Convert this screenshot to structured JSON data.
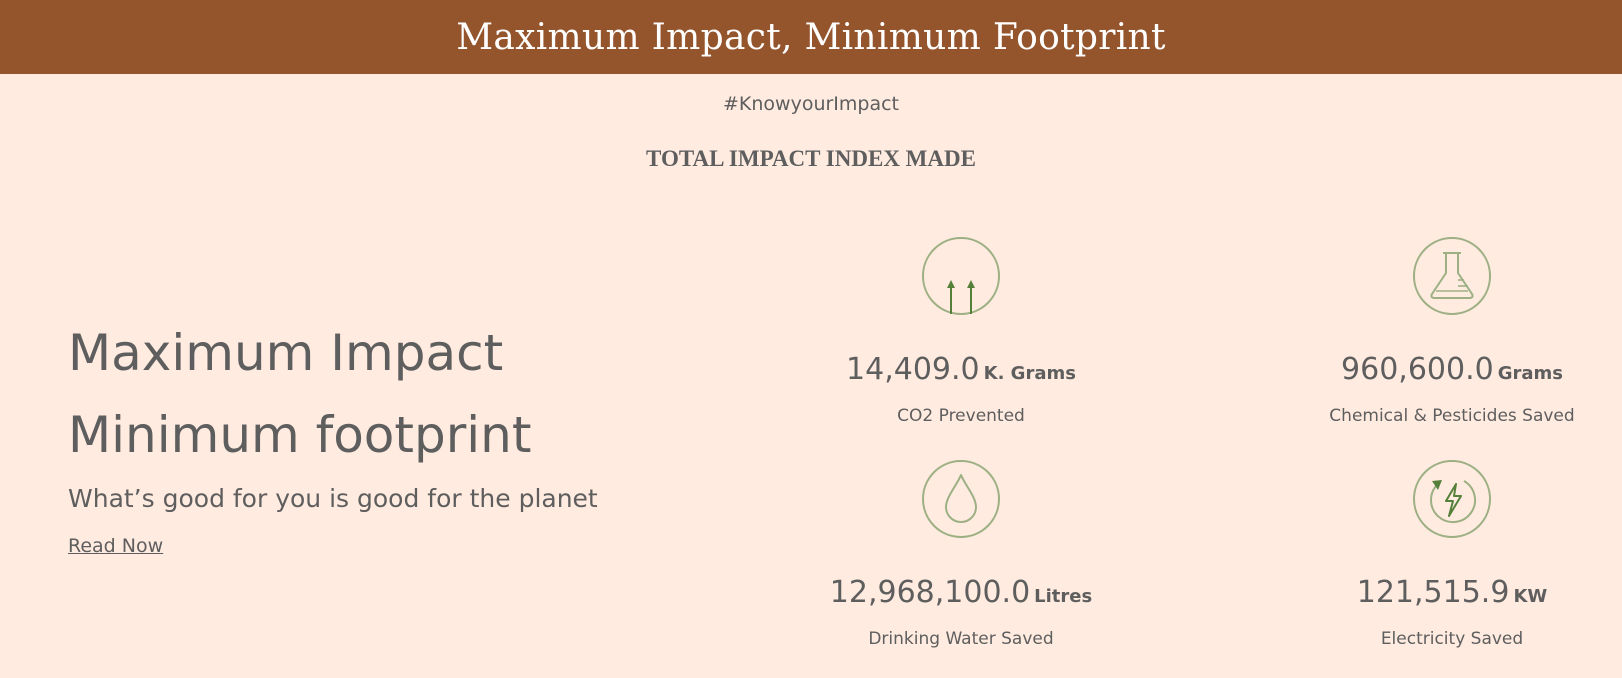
{
  "banner": {
    "title": "Maximum Impact, Minimum Footprint"
  },
  "hashtag": "#KnowyourImpact",
  "index_heading": "TOTAL IMPACT INDEX MADE",
  "hero": {
    "line1": "Maximum Impact",
    "line2": "Minimum footprint",
    "subtitle": "What’s good for you is good for the planet",
    "link_label": "Read Now"
  },
  "stats": {
    "co2": {
      "value": "14,409.0",
      "unit": "K. Grams",
      "label": "CO2 Prevented",
      "icon": "co2-arrows-icon"
    },
    "chemical": {
      "value": "960,600.0",
      "unit": "Grams",
      "label": "Chemical & Pesticides Saved",
      "icon": "flask-icon"
    },
    "water": {
      "value": "12,968,100.0",
      "unit": "Litres",
      "label": "Drinking Water Saved",
      "icon": "water-drop-icon"
    },
    "electricity": {
      "value": "121,515.9",
      "unit": "KW",
      "label": "Electricity Saved",
      "icon": "renewable-energy-icon"
    }
  },
  "colors": {
    "banner": "#94552d",
    "background": "#ffebe0",
    "text": "#5e5e5e",
    "icon_circle": "#9db083",
    "icon_accent": "#55803a"
  }
}
